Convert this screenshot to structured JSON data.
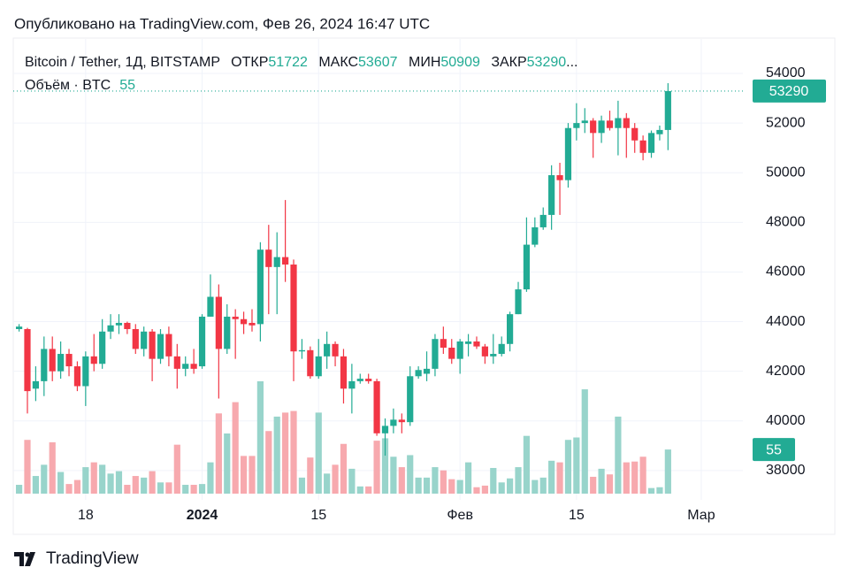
{
  "chart_data": {
    "type": "candlestick",
    "published": "Опубликовано на TradingView.com, Фев 26, 2024 16:47 UTC",
    "title": "Bitcoin / Tether, 1Д, BITSTAMP",
    "ohlc_labels": [
      "ОТКР",
      "МАКС",
      "МИН",
      "ЗАКР"
    ],
    "truncation": "...",
    "volume_label": "Объём · BTC",
    "brand": "TradingView",
    "up_color": "#22ab94",
    "down_color": "#f23645",
    "up_volume_color": "#98d4cb",
    "down_volume_color": "#f7a9ae",
    "grid": true,
    "xlim": [
      -0.7,
      87
    ],
    "xticks": [
      {
        "value": 8,
        "label": "18"
      },
      {
        "value": 22,
        "label": "2024"
      },
      {
        "value": 36,
        "label": "15"
      },
      {
        "value": 53,
        "label": "Фев"
      },
      {
        "value": 67,
        "label": "15"
      },
      {
        "value": 82,
        "label": "Мар"
      }
    ],
    "ylim": [
      36820,
      55390
    ],
    "yticks": [
      38000,
      40000,
      42000,
      44000,
      46000,
      48000,
      50000,
      52000,
      54000
    ],
    "open": [
      43700,
      43700,
      41300,
      41600,
      42900,
      42000,
      42700,
      42200,
      41400,
      42600,
      42300,
      43600,
      43850,
      43950,
      43700,
      42900,
      43600,
      42500,
      43500,
      42600,
      42100,
      42300,
      42200,
      44200,
      45000,
      42900,
      44200,
      44100,
      43950,
      43900,
      46900,
      46200,
      46600,
      46300,
      42800,
      42850,
      41800,
      42600,
      43100,
      42600,
      41300,
      41600,
      41700,
      41600,
      39500,
      39800,
      40050,
      39950,
      41800,
      41900,
      42100,
      43300,
      42950,
      42500,
      43100,
      43200,
      43000,
      42600,
      42700,
      43100,
      44300,
      45300,
      47100,
      47800,
      48300,
      49900,
      49700,
      51800,
      52000,
      52100,
      51600,
      52100,
      51800,
      52200,
      51800,
      51300,
      50800,
      51550,
      51722
    ],
    "high": [
      43900,
      43750,
      42200,
      43400,
      43400,
      43200,
      42900,
      42400,
      42800,
      43500,
      44100,
      44300,
      44300,
      44000,
      43900,
      43800,
      43700,
      43700,
      43800,
      43100,
      42600,
      42900,
      44300,
      45900,
      45500,
      44700,
      44500,
      44400,
      44500,
      47200,
      47900,
      47600,
      48900,
      46500,
      43300,
      43000,
      43300,
      43600,
      43200,
      42900,
      42300,
      41900,
      41900,
      41700,
      40100,
      40500,
      40300,
      42200,
      42200,
      42800,
      43500,
      43800,
      43300,
      43300,
      43500,
      43400,
      43100,
      43500,
      43400,
      44400,
      45600,
      48200,
      48200,
      48600,
      50300,
      50400,
      52000,
      52800,
      52600,
      52200,
      52300,
      52500,
      52900,
      52400,
      52000,
      51500,
      51700,
      51900,
      53607
    ],
    "low": [
      43600,
      40300,
      40800,
      41000,
      41600,
      41700,
      41800,
      41200,
      40600,
      42000,
      42100,
      43300,
      43500,
      43500,
      42700,
      42600,
      41600,
      42300,
      42200,
      41300,
      41800,
      41900,
      42100,
      44200,
      40900,
      42700,
      42500,
      43500,
      43600,
      43200,
      44300,
      44300,
      45600,
      41600,
      42500,
      41700,
      41700,
      42100,
      42200,
      40700,
      40300,
      41500,
      41500,
      39400,
      38600,
      39500,
      39500,
      39800,
      41700,
      41600,
      41800,
      42700,
      42300,
      41900,
      42600,
      42900,
      42300,
      42300,
      42600,
      42800,
      44300,
      45200,
      47000,
      47700,
      47700,
      48300,
      49400,
      51300,
      51600,
      50600,
      51200,
      51700,
      50700,
      50600,
      50800,
      50500,
      50600,
      51300,
      50909
    ],
    "close": [
      43800,
      41200,
      41600,
      42900,
      42000,
      42700,
      42200,
      41400,
      42600,
      42300,
      43600,
      43850,
      43950,
      43700,
      42900,
      43600,
      42500,
      43500,
      42600,
      42100,
      42300,
      42100,
      44200,
      45000,
      42900,
      44200,
      44100,
      43900,
      43850,
      46900,
      46200,
      46600,
      46300,
      42800,
      42850,
      41800,
      42600,
      43100,
      42600,
      41300,
      41600,
      41700,
      41600,
      39500,
      39800,
      40050,
      39950,
      41800,
      42050,
      42100,
      43300,
      42950,
      42500,
      43200,
      43200,
      43000,
      42600,
      42700,
      43100,
      44300,
      45300,
      47100,
      47800,
      48300,
      49900,
      49700,
      51800,
      52000,
      52100,
      51600,
      52100,
      51800,
      52200,
      51800,
      51300,
      50800,
      51600,
      51722,
      53290
    ],
    "volume": [
      11,
      67,
      22,
      36,
      64,
      27,
      12,
      17,
      33,
      39,
      36,
      25,
      28,
      11,
      22,
      20,
      28,
      14,
      14,
      61,
      11,
      11,
      12,
      39,
      100,
      75,
      114,
      47,
      47,
      140,
      78,
      96,
      101,
      103,
      20,
      45,
      101,
      25,
      36,
      62,
      31,
      9,
      9,
      66,
      69,
      46,
      33,
      48,
      20,
      20,
      33,
      29,
      18,
      17,
      39,
      8,
      10,
      32,
      14,
      19,
      33,
      72,
      17,
      20,
      41,
      39,
      67,
      70,
      130,
      21,
      31,
      24,
      96,
      39,
      40,
      46,
      7,
      8,
      55
    ]
  }
}
